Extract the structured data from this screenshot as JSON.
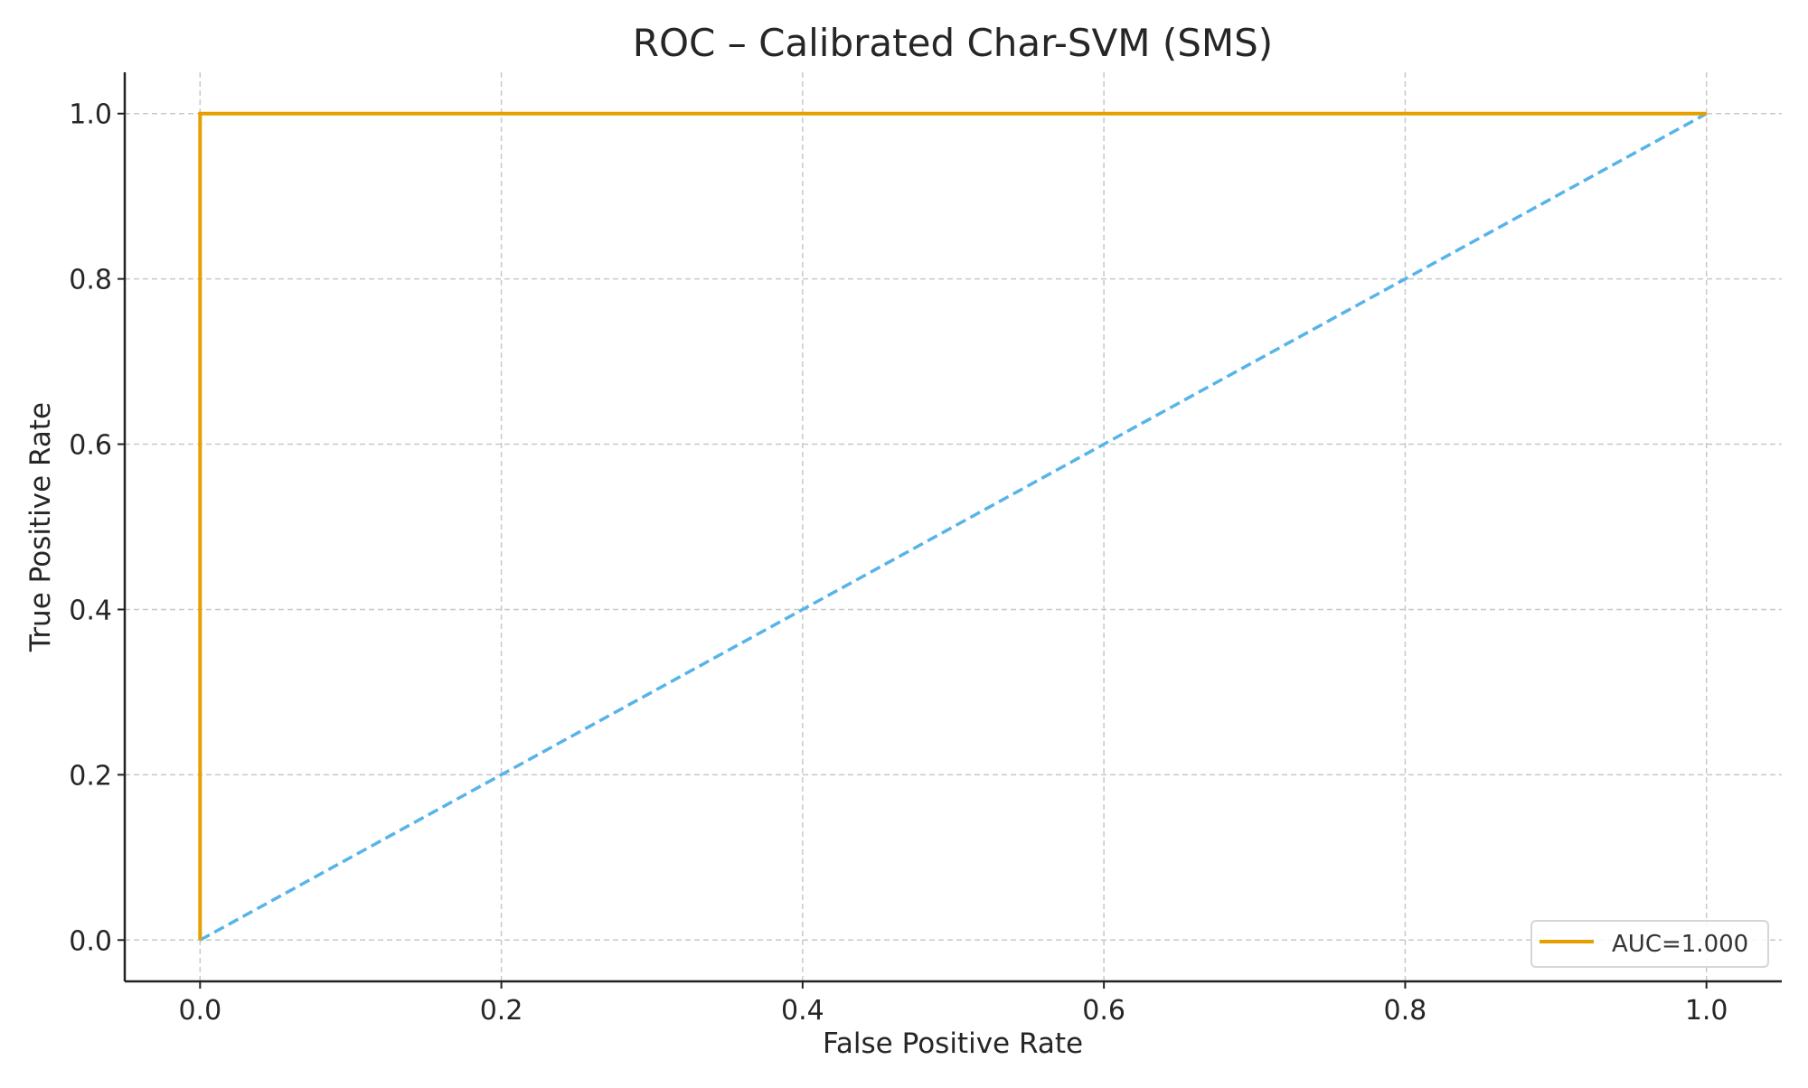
{
  "chart_data": {
    "type": "line",
    "title": "ROC – Calibrated Char-SVM (SMS)",
    "xlabel": "False Positive Rate",
    "ylabel": "True Positive Rate",
    "xlim": [
      -0.05,
      1.05
    ],
    "ylim": [
      -0.05,
      1.05
    ],
    "xticks": [
      0.0,
      0.2,
      0.4,
      0.6,
      0.8,
      1.0
    ],
    "xtick_labels": [
      "0.0",
      "0.2",
      "0.4",
      "0.6",
      "0.8",
      "1.0"
    ],
    "yticks": [
      0.0,
      0.2,
      0.4,
      0.6,
      0.8,
      1.0
    ],
    "ytick_labels": [
      "0.0",
      "0.2",
      "0.4",
      "0.6",
      "0.8",
      "1.0"
    ],
    "grid": true,
    "legend_position": "lower-right",
    "series": [
      {
        "name": "AUC=1.000",
        "color": "#E69F00",
        "style": "solid",
        "in_legend": true,
        "x": [
          0.0,
          0.0,
          1.0
        ],
        "y": [
          0.0,
          1.0,
          1.0
        ]
      },
      {
        "name": "chance",
        "color": "#56B4E9",
        "style": "dashed",
        "in_legend": false,
        "x": [
          0.0,
          1.0
        ],
        "y": [
          0.0,
          1.0
        ]
      }
    ]
  }
}
